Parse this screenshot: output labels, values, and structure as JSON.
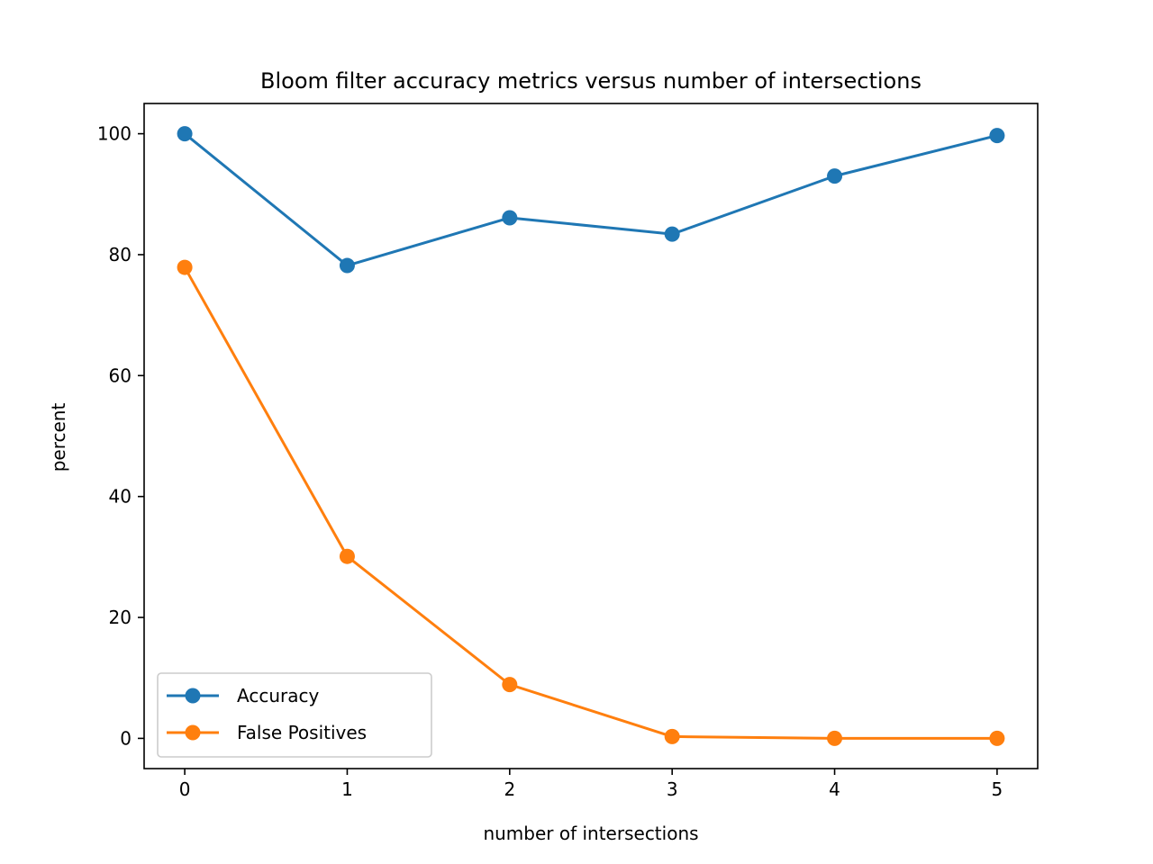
{
  "chart_data": {
    "type": "line",
    "title": "Bloom filter accuracy metrics versus number of intersections",
    "xlabel": "number of intersections",
    "ylabel": "percent",
    "x": [
      0,
      1,
      2,
      3,
      4,
      5
    ],
    "x_ticks": [
      "0",
      "1",
      "2",
      "3",
      "4",
      "5"
    ],
    "y_ticks": [
      "0",
      "20",
      "40",
      "60",
      "80",
      "100"
    ],
    "xlim": [
      -0.25,
      5.25
    ],
    "ylim": [
      -5,
      105
    ],
    "grid": false,
    "legend_position": "lower-left",
    "series": [
      {
        "name": "Accuracy",
        "color": "#1f77b4",
        "marker": "circle",
        "values": [
          100,
          78.2,
          86.1,
          83.4,
          93.0,
          99.7
        ]
      },
      {
        "name": "False Positives",
        "color": "#ff7f0e",
        "marker": "circle",
        "values": [
          77.9,
          30.1,
          8.9,
          0.3,
          0.0,
          0.0
        ]
      }
    ]
  }
}
